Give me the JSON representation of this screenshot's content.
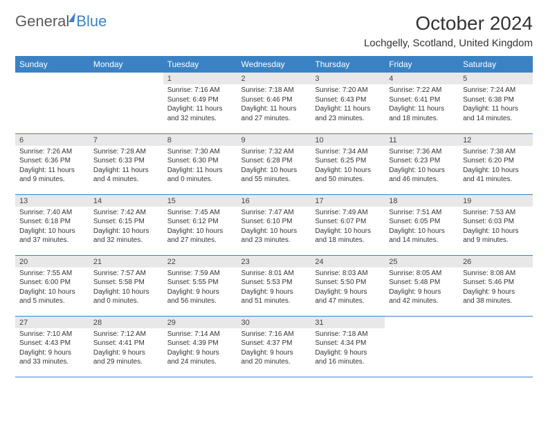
{
  "brand": {
    "general": "General",
    "blue": "Blue"
  },
  "title": "October 2024",
  "location": "Lochgelly, Scotland, United Kingdom",
  "colors": {
    "accent": "#3b82c4",
    "header_text": "#ffffff",
    "daynum_bg": "#e8e8e8",
    "border": "#3b82c4"
  },
  "weekdays": [
    "Sunday",
    "Monday",
    "Tuesday",
    "Wednesday",
    "Thursday",
    "Friday",
    "Saturday"
  ],
  "weeks": [
    [
      null,
      null,
      {
        "n": "1",
        "sr": "Sunrise: 7:16 AM",
        "ss": "Sunset: 6:49 PM",
        "dl1": "Daylight: 11 hours",
        "dl2": "and 32 minutes."
      },
      {
        "n": "2",
        "sr": "Sunrise: 7:18 AM",
        "ss": "Sunset: 6:46 PM",
        "dl1": "Daylight: 11 hours",
        "dl2": "and 27 minutes."
      },
      {
        "n": "3",
        "sr": "Sunrise: 7:20 AM",
        "ss": "Sunset: 6:43 PM",
        "dl1": "Daylight: 11 hours",
        "dl2": "and 23 minutes."
      },
      {
        "n": "4",
        "sr": "Sunrise: 7:22 AM",
        "ss": "Sunset: 6:41 PM",
        "dl1": "Daylight: 11 hours",
        "dl2": "and 18 minutes."
      },
      {
        "n": "5",
        "sr": "Sunrise: 7:24 AM",
        "ss": "Sunset: 6:38 PM",
        "dl1": "Daylight: 11 hours",
        "dl2": "and 14 minutes."
      }
    ],
    [
      {
        "n": "6",
        "sr": "Sunrise: 7:26 AM",
        "ss": "Sunset: 6:36 PM",
        "dl1": "Daylight: 11 hours",
        "dl2": "and 9 minutes."
      },
      {
        "n": "7",
        "sr": "Sunrise: 7:28 AM",
        "ss": "Sunset: 6:33 PM",
        "dl1": "Daylight: 11 hours",
        "dl2": "and 4 minutes."
      },
      {
        "n": "8",
        "sr": "Sunrise: 7:30 AM",
        "ss": "Sunset: 6:30 PM",
        "dl1": "Daylight: 11 hours",
        "dl2": "and 0 minutes."
      },
      {
        "n": "9",
        "sr": "Sunrise: 7:32 AM",
        "ss": "Sunset: 6:28 PM",
        "dl1": "Daylight: 10 hours",
        "dl2": "and 55 minutes."
      },
      {
        "n": "10",
        "sr": "Sunrise: 7:34 AM",
        "ss": "Sunset: 6:25 PM",
        "dl1": "Daylight: 10 hours",
        "dl2": "and 50 minutes."
      },
      {
        "n": "11",
        "sr": "Sunrise: 7:36 AM",
        "ss": "Sunset: 6:23 PM",
        "dl1": "Daylight: 10 hours",
        "dl2": "and 46 minutes."
      },
      {
        "n": "12",
        "sr": "Sunrise: 7:38 AM",
        "ss": "Sunset: 6:20 PM",
        "dl1": "Daylight: 10 hours",
        "dl2": "and 41 minutes."
      }
    ],
    [
      {
        "n": "13",
        "sr": "Sunrise: 7:40 AM",
        "ss": "Sunset: 6:18 PM",
        "dl1": "Daylight: 10 hours",
        "dl2": "and 37 minutes."
      },
      {
        "n": "14",
        "sr": "Sunrise: 7:42 AM",
        "ss": "Sunset: 6:15 PM",
        "dl1": "Daylight: 10 hours",
        "dl2": "and 32 minutes."
      },
      {
        "n": "15",
        "sr": "Sunrise: 7:45 AM",
        "ss": "Sunset: 6:12 PM",
        "dl1": "Daylight: 10 hours",
        "dl2": "and 27 minutes."
      },
      {
        "n": "16",
        "sr": "Sunrise: 7:47 AM",
        "ss": "Sunset: 6:10 PM",
        "dl1": "Daylight: 10 hours",
        "dl2": "and 23 minutes."
      },
      {
        "n": "17",
        "sr": "Sunrise: 7:49 AM",
        "ss": "Sunset: 6:07 PM",
        "dl1": "Daylight: 10 hours",
        "dl2": "and 18 minutes."
      },
      {
        "n": "18",
        "sr": "Sunrise: 7:51 AM",
        "ss": "Sunset: 6:05 PM",
        "dl1": "Daylight: 10 hours",
        "dl2": "and 14 minutes."
      },
      {
        "n": "19",
        "sr": "Sunrise: 7:53 AM",
        "ss": "Sunset: 6:03 PM",
        "dl1": "Daylight: 10 hours",
        "dl2": "and 9 minutes."
      }
    ],
    [
      {
        "n": "20",
        "sr": "Sunrise: 7:55 AM",
        "ss": "Sunset: 6:00 PM",
        "dl1": "Daylight: 10 hours",
        "dl2": "and 5 minutes."
      },
      {
        "n": "21",
        "sr": "Sunrise: 7:57 AM",
        "ss": "Sunset: 5:58 PM",
        "dl1": "Daylight: 10 hours",
        "dl2": "and 0 minutes."
      },
      {
        "n": "22",
        "sr": "Sunrise: 7:59 AM",
        "ss": "Sunset: 5:55 PM",
        "dl1": "Daylight: 9 hours",
        "dl2": "and 56 minutes."
      },
      {
        "n": "23",
        "sr": "Sunrise: 8:01 AM",
        "ss": "Sunset: 5:53 PM",
        "dl1": "Daylight: 9 hours",
        "dl2": "and 51 minutes."
      },
      {
        "n": "24",
        "sr": "Sunrise: 8:03 AM",
        "ss": "Sunset: 5:50 PM",
        "dl1": "Daylight: 9 hours",
        "dl2": "and 47 minutes."
      },
      {
        "n": "25",
        "sr": "Sunrise: 8:05 AM",
        "ss": "Sunset: 5:48 PM",
        "dl1": "Daylight: 9 hours",
        "dl2": "and 42 minutes."
      },
      {
        "n": "26",
        "sr": "Sunrise: 8:08 AM",
        "ss": "Sunset: 5:46 PM",
        "dl1": "Daylight: 9 hours",
        "dl2": "and 38 minutes."
      }
    ],
    [
      {
        "n": "27",
        "sr": "Sunrise: 7:10 AM",
        "ss": "Sunset: 4:43 PM",
        "dl1": "Daylight: 9 hours",
        "dl2": "and 33 minutes."
      },
      {
        "n": "28",
        "sr": "Sunrise: 7:12 AM",
        "ss": "Sunset: 4:41 PM",
        "dl1": "Daylight: 9 hours",
        "dl2": "and 29 minutes."
      },
      {
        "n": "29",
        "sr": "Sunrise: 7:14 AM",
        "ss": "Sunset: 4:39 PM",
        "dl1": "Daylight: 9 hours",
        "dl2": "and 24 minutes."
      },
      {
        "n": "30",
        "sr": "Sunrise: 7:16 AM",
        "ss": "Sunset: 4:37 PM",
        "dl1": "Daylight: 9 hours",
        "dl2": "and 20 minutes."
      },
      {
        "n": "31",
        "sr": "Sunrise: 7:18 AM",
        "ss": "Sunset: 4:34 PM",
        "dl1": "Daylight: 9 hours",
        "dl2": "and 16 minutes."
      },
      null,
      null
    ]
  ]
}
